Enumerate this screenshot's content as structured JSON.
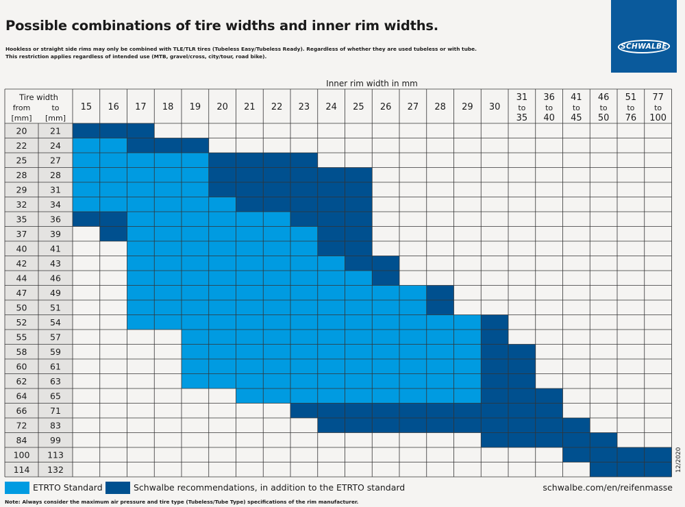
{
  "title": "Possible combinations of tire widths and inner rim widths.",
  "subtitle_line1": "Hookless or straight side rims may only be combined with TLE/TLR tires (Tubeless Easy/Tubeless Ready). Regardless of whether they are used tubeless or with tube.",
  "subtitle_line2": "This restriction applies regardless of intended use (MTB, gravel/cross, city/tour, road bike).",
  "logo_text": "SCHWALBE",
  "legend": {
    "etrto": "ETRTO Standard",
    "schwalbe": "Schwalbe recommendations, in addition to the ETRTO standard"
  },
  "url": "schwalbe.com/en/reifenmasse",
  "note": "Note:  Always consider the maximum air pressure and tire type (Tubeless/Tube Type) specifications of the rim manufacturer.",
  "date": "12/2020",
  "colors": {
    "etrto": "#009be1",
    "schwalbe": "#00508f",
    "empty": "#f5f4f2",
    "line": "#333333"
  },
  "chart_data": {
    "type": "heatmap",
    "xlabel": "Inner rim width in mm",
    "row_header": {
      "title": "Tire width",
      "from": "from",
      "to": "to",
      "unit": "[mm]"
    },
    "columns": [
      {
        "label": [
          "15"
        ]
      },
      {
        "label": [
          "16"
        ]
      },
      {
        "label": [
          "17"
        ]
      },
      {
        "label": [
          "18"
        ]
      },
      {
        "label": [
          "19"
        ]
      },
      {
        "label": [
          "20"
        ]
      },
      {
        "label": [
          "21"
        ]
      },
      {
        "label": [
          "22"
        ]
      },
      {
        "label": [
          "23"
        ]
      },
      {
        "label": [
          "24"
        ]
      },
      {
        "label": [
          "25"
        ]
      },
      {
        "label": [
          "26"
        ]
      },
      {
        "label": [
          "27"
        ]
      },
      {
        "label": [
          "28"
        ]
      },
      {
        "label": [
          "29"
        ]
      },
      {
        "label": [
          "30"
        ]
      },
      {
        "label": [
          "31",
          "to",
          "35"
        ]
      },
      {
        "label": [
          "36",
          "to",
          "40"
        ]
      },
      {
        "label": [
          "41",
          "to",
          "45"
        ]
      },
      {
        "label": [
          "46",
          "to",
          "50"
        ]
      },
      {
        "label": [
          "51",
          "to",
          "76"
        ]
      },
      {
        "label": [
          "77",
          "to",
          "100"
        ]
      }
    ],
    "legend_codes": {
      "0": "none",
      "1": "ETRTO Standard",
      "2": "Schwalbe recommendations, in addition to the ETRTO standard"
    },
    "rows": [
      {
        "from": "20",
        "to": "21",
        "cells": [
          2,
          2,
          2,
          0,
          0,
          0,
          0,
          0,
          0,
          0,
          0,
          0,
          0,
          0,
          0,
          0,
          0,
          0,
          0,
          0,
          0,
          0
        ]
      },
      {
        "from": "22",
        "to": "24",
        "cells": [
          1,
          1,
          2,
          2,
          2,
          0,
          0,
          0,
          0,
          0,
          0,
          0,
          0,
          0,
          0,
          0,
          0,
          0,
          0,
          0,
          0,
          0
        ]
      },
      {
        "from": "25",
        "to": "27",
        "cells": [
          1,
          1,
          1,
          1,
          1,
          2,
          2,
          2,
          2,
          0,
          0,
          0,
          0,
          0,
          0,
          0,
          0,
          0,
          0,
          0,
          0,
          0
        ]
      },
      {
        "from": "28",
        "to": "28",
        "cells": [
          1,
          1,
          1,
          1,
          1,
          2,
          2,
          2,
          2,
          2,
          2,
          0,
          0,
          0,
          0,
          0,
          0,
          0,
          0,
          0,
          0,
          0
        ]
      },
      {
        "from": "29",
        "to": "31",
        "cells": [
          1,
          1,
          1,
          1,
          1,
          2,
          2,
          2,
          2,
          2,
          2,
          0,
          0,
          0,
          0,
          0,
          0,
          0,
          0,
          0,
          0,
          0
        ]
      },
      {
        "from": "32",
        "to": "34",
        "cells": [
          1,
          1,
          1,
          1,
          1,
          1,
          2,
          2,
          2,
          2,
          2,
          0,
          0,
          0,
          0,
          0,
          0,
          0,
          0,
          0,
          0,
          0
        ]
      },
      {
        "from": "35",
        "to": "36",
        "cells": [
          2,
          2,
          1,
          1,
          1,
          1,
          1,
          1,
          2,
          2,
          2,
          0,
          0,
          0,
          0,
          0,
          0,
          0,
          0,
          0,
          0,
          0
        ]
      },
      {
        "from": "37",
        "to": "39",
        "cells": [
          0,
          2,
          1,
          1,
          1,
          1,
          1,
          1,
          1,
          2,
          2,
          0,
          0,
          0,
          0,
          0,
          0,
          0,
          0,
          0,
          0,
          0
        ]
      },
      {
        "from": "40",
        "to": "41",
        "cells": [
          0,
          0,
          1,
          1,
          1,
          1,
          1,
          1,
          1,
          2,
          2,
          0,
          0,
          0,
          0,
          0,
          0,
          0,
          0,
          0,
          0,
          0
        ]
      },
      {
        "from": "42",
        "to": "43",
        "cells": [
          0,
          0,
          1,
          1,
          1,
          1,
          1,
          1,
          1,
          1,
          2,
          2,
          0,
          0,
          0,
          0,
          0,
          0,
          0,
          0,
          0,
          0
        ]
      },
      {
        "from": "44",
        "to": "46",
        "cells": [
          0,
          0,
          1,
          1,
          1,
          1,
          1,
          1,
          1,
          1,
          1,
          2,
          0,
          0,
          0,
          0,
          0,
          0,
          0,
          0,
          0,
          0
        ]
      },
      {
        "from": "47",
        "to": "49",
        "cells": [
          0,
          0,
          1,
          1,
          1,
          1,
          1,
          1,
          1,
          1,
          1,
          1,
          1,
          2,
          0,
          0,
          0,
          0,
          0,
          0,
          0,
          0
        ]
      },
      {
        "from": "50",
        "to": "51",
        "cells": [
          0,
          0,
          1,
          1,
          1,
          1,
          1,
          1,
          1,
          1,
          1,
          1,
          1,
          2,
          0,
          0,
          0,
          0,
          0,
          0,
          0,
          0
        ]
      },
      {
        "from": "52",
        "to": "54",
        "cells": [
          0,
          0,
          1,
          1,
          1,
          1,
          1,
          1,
          1,
          1,
          1,
          1,
          1,
          1,
          1,
          2,
          0,
          0,
          0,
          0,
          0,
          0
        ]
      },
      {
        "from": "55",
        "to": "57",
        "cells": [
          0,
          0,
          0,
          0,
          1,
          1,
          1,
          1,
          1,
          1,
          1,
          1,
          1,
          1,
          1,
          2,
          0,
          0,
          0,
          0,
          0,
          0
        ]
      },
      {
        "from": "58",
        "to": "59",
        "cells": [
          0,
          0,
          0,
          0,
          1,
          1,
          1,
          1,
          1,
          1,
          1,
          1,
          1,
          1,
          1,
          2,
          2,
          0,
          0,
          0,
          0,
          0
        ]
      },
      {
        "from": "60",
        "to": "61",
        "cells": [
          0,
          0,
          0,
          0,
          1,
          1,
          1,
          1,
          1,
          1,
          1,
          1,
          1,
          1,
          1,
          2,
          2,
          0,
          0,
          0,
          0,
          0
        ]
      },
      {
        "from": "62",
        "to": "63",
        "cells": [
          0,
          0,
          0,
          0,
          1,
          1,
          1,
          1,
          1,
          1,
          1,
          1,
          1,
          1,
          1,
          2,
          2,
          0,
          0,
          0,
          0,
          0
        ]
      },
      {
        "from": "64",
        "to": "65",
        "cells": [
          0,
          0,
          0,
          0,
          0,
          0,
          1,
          1,
          1,
          1,
          1,
          1,
          1,
          1,
          1,
          2,
          2,
          2,
          0,
          0,
          0,
          0
        ]
      },
      {
        "from": "66",
        "to": "71",
        "cells": [
          0,
          0,
          0,
          0,
          0,
          0,
          0,
          0,
          2,
          2,
          2,
          2,
          2,
          2,
          2,
          2,
          2,
          2,
          0,
          0,
          0,
          0
        ]
      },
      {
        "from": "72",
        "to": "83",
        "cells": [
          0,
          0,
          0,
          0,
          0,
          0,
          0,
          0,
          0,
          2,
          2,
          2,
          2,
          2,
          2,
          2,
          2,
          2,
          2,
          0,
          0,
          0
        ]
      },
      {
        "from": "84",
        "to": "99",
        "cells": [
          0,
          0,
          0,
          0,
          0,
          0,
          0,
          0,
          0,
          0,
          0,
          0,
          0,
          0,
          0,
          2,
          2,
          2,
          2,
          2,
          0,
          0
        ]
      },
      {
        "from": "100",
        "to": "113",
        "cells": [
          0,
          0,
          0,
          0,
          0,
          0,
          0,
          0,
          0,
          0,
          0,
          0,
          0,
          0,
          0,
          0,
          0,
          0,
          2,
          2,
          2,
          2
        ]
      },
      {
        "from": "114",
        "to": "132",
        "cells": [
          0,
          0,
          0,
          0,
          0,
          0,
          0,
          0,
          0,
          0,
          0,
          0,
          0,
          0,
          0,
          0,
          0,
          0,
          0,
          2,
          2,
          2
        ]
      }
    ]
  }
}
